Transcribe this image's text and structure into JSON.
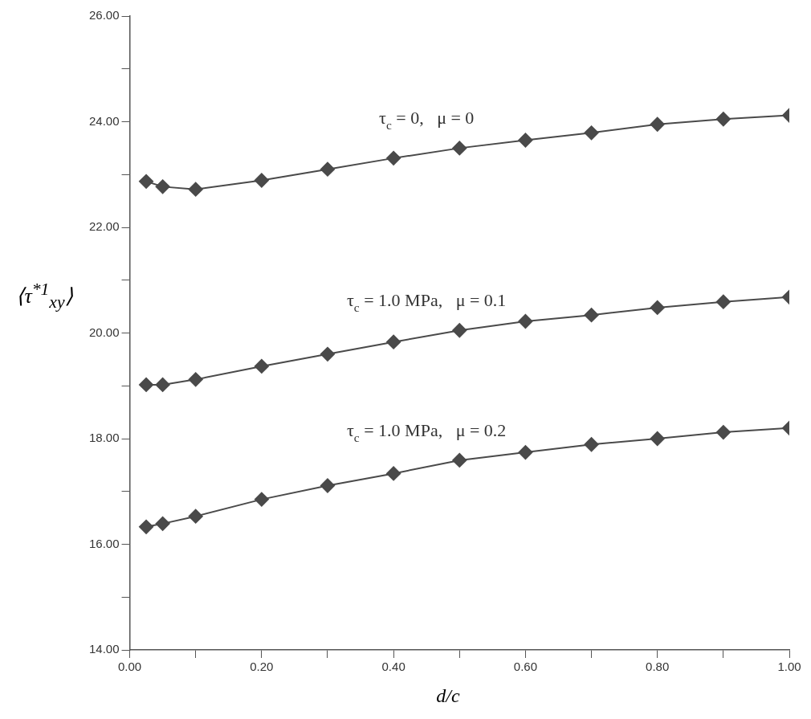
{
  "chart_data": {
    "type": "line",
    "xlabel": "d/c",
    "ylabel": "⟨τ$^{*1}$$_{xy}$⟩",
    "x": [
      0.025,
      0.05,
      0.1,
      0.2,
      0.3,
      0.4,
      0.5,
      0.6,
      0.7,
      0.8,
      0.9,
      1.0
    ],
    "series": [
      {
        "name": "τ$_{c}$ = 0,   μ = 0",
        "color": "#4a4a4a",
        "values": [
          22.87,
          22.77,
          22.72,
          22.89,
          23.1,
          23.31,
          23.5,
          23.65,
          23.79,
          23.95,
          24.05,
          24.12
        ]
      },
      {
        "name": "τ$_{c}$ = 1.0 MPa,   μ = 0.1",
        "color": "#4a4a4a",
        "values": [
          19.02,
          19.02,
          19.12,
          19.37,
          19.6,
          19.83,
          20.05,
          20.22,
          20.34,
          20.48,
          20.59,
          20.68
        ]
      },
      {
        "name": "τ$_{c}$ = 1.0 MPa,   μ = 0.2",
        "color": "#4a4a4a",
        "values": [
          16.33,
          16.39,
          16.53,
          16.85,
          17.11,
          17.34,
          17.59,
          17.74,
          17.89,
          18.0,
          18.12,
          18.2
        ]
      }
    ],
    "marker": "diamond",
    "line_style": "solid",
    "grid": false,
    "legend": false,
    "xlim": [
      0,
      1
    ],
    "xticks": [
      {
        "value": 0,
        "label": "0.00"
      },
      {
        "value": 0.1,
        "label": null
      },
      {
        "value": 0.2,
        "label": "0.20"
      },
      {
        "value": 0.3,
        "label": null
      },
      {
        "value": 0.4,
        "label": "0.40"
      },
      {
        "value": 0.5,
        "label": null
      },
      {
        "value": 0.6,
        "label": "0.60"
      },
      {
        "value": 0.7,
        "label": null
      },
      {
        "value": 0.8,
        "label": "0.80"
      },
      {
        "value": 0.9,
        "label": null
      },
      {
        "value": 1,
        "label": "1.00"
      }
    ],
    "ylim": [
      14,
      26
    ],
    "yticks": [
      {
        "value": 14,
        "label": "14.00"
      },
      {
        "value": 15,
        "label": null
      },
      {
        "value": 16,
        "label": "16.00"
      },
      {
        "value": 17,
        "label": null
      },
      {
        "value": 18,
        "label": "18.00"
      },
      {
        "value": 19,
        "label": null
      },
      {
        "value": 20,
        "label": "20.00"
      },
      {
        "value": 21,
        "label": null
      },
      {
        "value": 22,
        "label": "22.00"
      },
      {
        "value": 23,
        "label": null
      },
      {
        "value": 24,
        "label": "24.00"
      },
      {
        "value": 25,
        "label": null
      },
      {
        "value": 26,
        "label": "26.00"
      }
    ]
  }
}
